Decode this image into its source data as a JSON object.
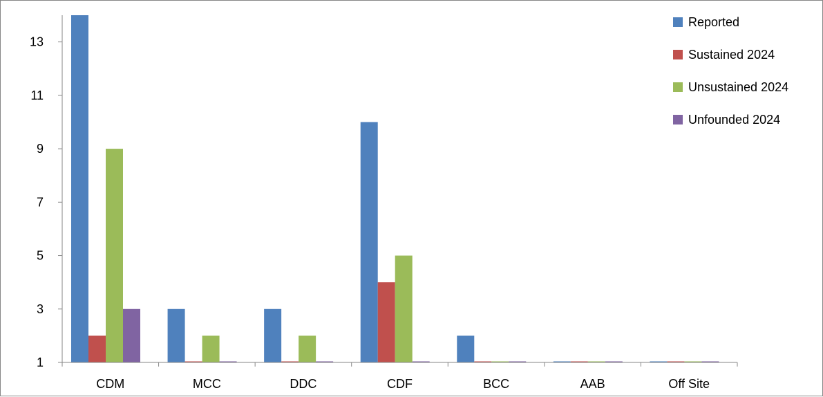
{
  "chart_data": {
    "type": "bar",
    "title": "",
    "xlabel": "",
    "ylabel": "",
    "categories": [
      "CDM",
      "MCC",
      "DDC",
      "CDF",
      "BCC",
      "AAB",
      "Off Site"
    ],
    "series": [
      {
        "name": "Reported",
        "color": "#4F81BD",
        "values": [
          14,
          3,
          3,
          10,
          2,
          1,
          1
        ]
      },
      {
        "name": "Sustained 2024",
        "color": "#C0504D",
        "values": [
          2,
          1,
          1,
          4,
          1,
          1,
          1
        ]
      },
      {
        "name": "Unsustained 2024",
        "color": "#9BBB59",
        "values": [
          9,
          2,
          2,
          5,
          1,
          1,
          1
        ]
      },
      {
        "name": "Unfounded 2024",
        "color": "#8064A2",
        "values": [
          3,
          1,
          1,
          1,
          1,
          1,
          1
        ]
      }
    ],
    "ylim": [
      1,
      14
    ],
    "yticks": [
      1,
      3,
      5,
      7,
      9,
      11,
      13
    ],
    "grid": false,
    "legend_position": "top-right"
  }
}
